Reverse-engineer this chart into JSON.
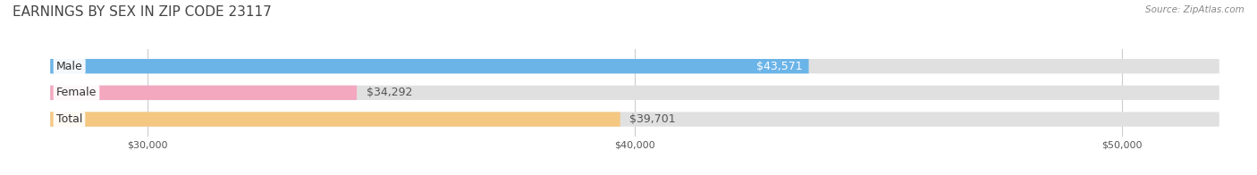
{
  "title": "EARNINGS BY SEX IN ZIP CODE 23117",
  "source": "Source: ZipAtlas.com",
  "categories": [
    "Male",
    "Female",
    "Total"
  ],
  "values": [
    43571,
    34292,
    39701
  ],
  "bar_colors": [
    "#6ab4e8",
    "#f4a8c0",
    "#f5c882"
  ],
  "bar_bg_color": "#e0e0e0",
  "value_labels": [
    "$43,571",
    "$34,292",
    "$39,701"
  ],
  "xmin": 28000,
  "xmax": 52000,
  "xticks": [
    30000,
    40000,
    50000
  ],
  "xtick_labels": [
    "$30,000",
    "$40,000",
    "$50,000"
  ],
  "fig_width": 14.06,
  "fig_height": 1.96,
  "title_fontsize": 11,
  "value_label_fontsize": 9,
  "tick_fontsize": 8,
  "background_color": "#ffffff",
  "bar_height": 0.55,
  "category_label_fontsize": 9,
  "value_inside_color": "#ffffff",
  "value_outside_color": "#555555"
}
